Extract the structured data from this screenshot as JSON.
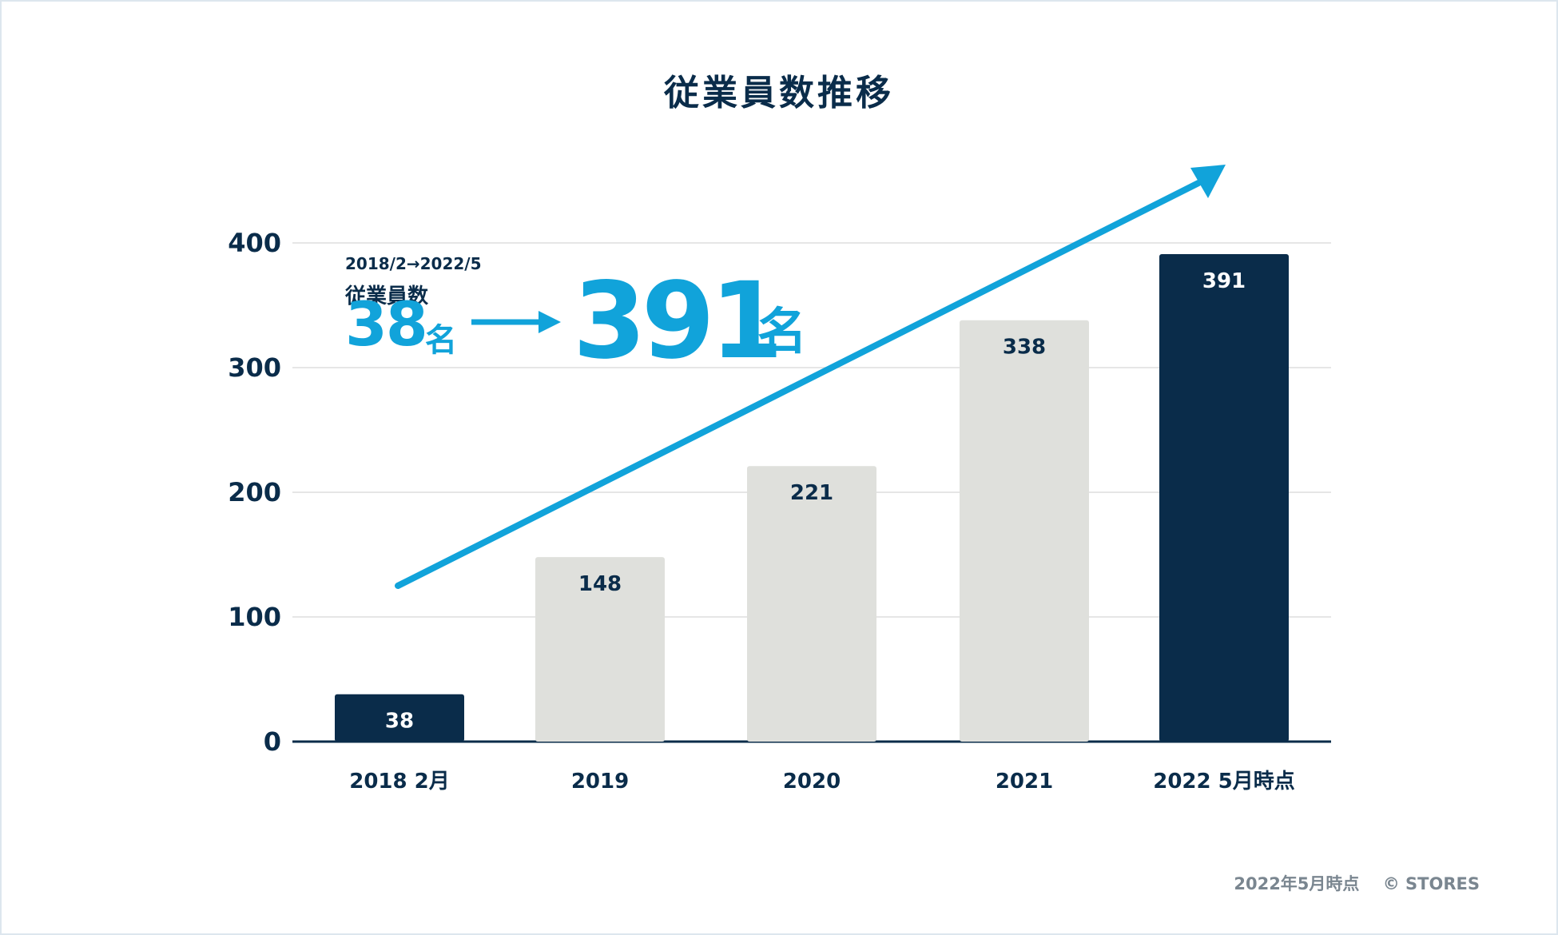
{
  "footer": {
    "note": "2022年5月時点",
    "copyright": "© STORES"
  },
  "callout": {
    "range": "2018/2→2022/5",
    "label": "従業員数",
    "from_value": "38",
    "from_unit": "名",
    "to_value": "391",
    "to_unit": "名"
  },
  "colors": {
    "navy": "#0a2c4a",
    "gray_bar": "#dfe0dc",
    "accent": "#11a3da",
    "grid": "#dedede"
  },
  "chart_data": {
    "type": "bar",
    "title": "従業員数推移",
    "xlabel": "",
    "ylabel": "",
    "categories": [
      "2018  2月",
      "2019",
      "2020",
      "2021",
      "2022  5月時点"
    ],
    "values": [
      38,
      148,
      221,
      338,
      391
    ],
    "highlight": [
      true,
      false,
      false,
      false,
      true
    ],
    "ylim": [
      0,
      400
    ],
    "yticks": [
      "0",
      "100",
      "200",
      "300",
      "400"
    ],
    "grid": true,
    "legend": "none",
    "trend_arrow": true
  }
}
